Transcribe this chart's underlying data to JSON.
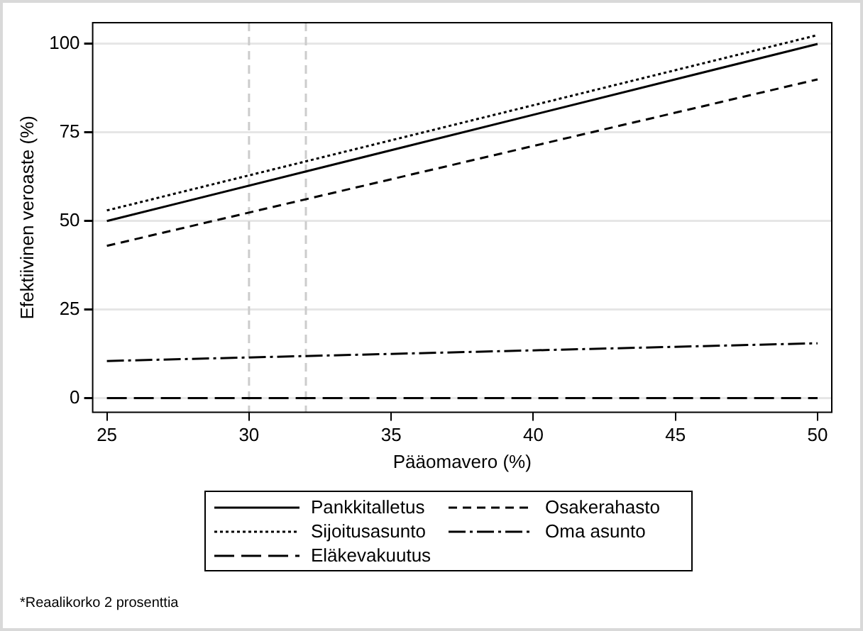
{
  "chart_data": {
    "type": "line",
    "xlabel": "Pääomavero (%)",
    "ylabel": "Efektiivinen veroaste (%)",
    "x": [
      25,
      50
    ],
    "xlim": [
      24.5,
      50.5
    ],
    "xticks": [
      25,
      30,
      35,
      40,
      45,
      50
    ],
    "ylim": [
      -4,
      106
    ],
    "yticks": [
      0,
      25,
      50,
      75,
      100
    ],
    "grid": "y",
    "legend": "bottom",
    "marker": "none",
    "series": [
      {
        "name": "Pankkitalletus",
        "color": "#000000",
        "line_style": "solid",
        "values": [
          50,
          100
        ]
      },
      {
        "name": "Osakerahasto",
        "color": "#000000",
        "line_style": "dashed",
        "values": [
          43,
          90
        ]
      },
      {
        "name": "Sijoitusasunto",
        "color": "#000000",
        "line_style": "dotted",
        "values": [
          53,
          102.5
        ]
      },
      {
        "name": "Oma asunto",
        "color": "#000000",
        "line_style": "dashdot",
        "values": [
          10.5,
          15.5
        ]
      },
      {
        "name": "Eläkevakuutus",
        "color": "#000000",
        "line_style": "longdash",
        "values": [
          0,
          0
        ]
      }
    ],
    "ref_lines": [
      {
        "axis": "x",
        "value": 30,
        "color": "#cccccc",
        "line_style": "dashed"
      },
      {
        "axis": "x",
        "value": 32,
        "color": "#cccccc",
        "line_style": "dashed"
      }
    ],
    "annotations": [
      "*Reaalikorko 2 prosenttia"
    ]
  }
}
